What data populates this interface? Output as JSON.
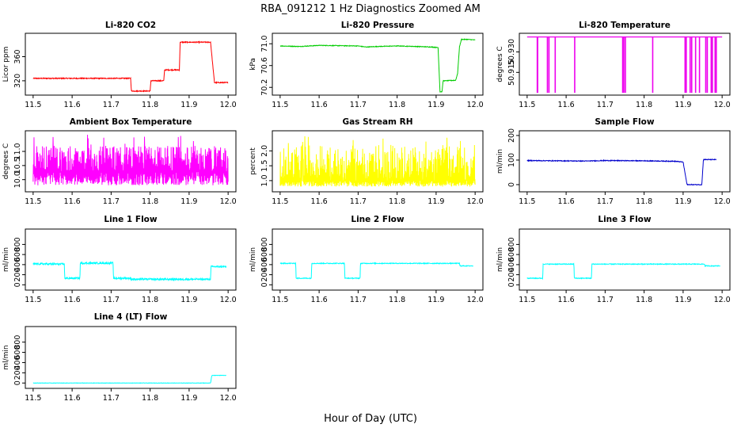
{
  "figure": {
    "title": "RBA_091212  1 Hz Diagnostics Zoomed AM",
    "xlabel": "Hour of Day (UTC)"
  },
  "chart_data": [
    {
      "type": "line",
      "title": "Li-820 CO2",
      "ylabel": "Licor ppm",
      "color": "#ff0000",
      "xlim": [
        11.5,
        12.0
      ],
      "xticks": [
        11.5,
        11.6,
        11.7,
        11.8,
        11.9,
        12.0
      ],
      "ylim": [
        300,
        395
      ],
      "yticks": [
        320,
        360
      ],
      "ytick_labels": [
        "320",
        "360"
      ],
      "noise": 0.8,
      "series": [
        {
          "x": [
            11.5,
            11.75,
            11.752,
            11.8,
            11.802,
            11.835,
            11.837,
            11.875,
            11.877,
            11.955,
            11.96,
            11.965,
            12.0
          ],
          "y": [
            324,
            324,
            303,
            303,
            320,
            320,
            338,
            338,
            384,
            384,
            350,
            317,
            317
          ]
        }
      ]
    },
    {
      "type": "line",
      "title": "Li-820 Pressure",
      "ylabel": "kPa",
      "color": "#00cc00",
      "xlim": [
        11.5,
        12.0
      ],
      "xticks": [
        11.5,
        11.6,
        11.7,
        11.8,
        11.9,
        12.0
      ],
      "ylim": [
        70.1,
        71.15
      ],
      "yticks": [
        70.2,
        70.6,
        71.0
      ],
      "ytick_labels": [
        "70.2",
        "70.6",
        "71.0"
      ],
      "noise": 0.006,
      "series": [
        {
          "x": [
            11.5,
            11.55,
            11.6,
            11.7,
            11.72,
            11.75,
            11.8,
            11.85,
            11.89,
            11.905,
            11.91,
            11.915,
            11.918,
            11.95,
            11.955,
            11.96,
            11.965,
            11.98,
            12.0
          ],
          "y": [
            70.96,
            70.95,
            70.97,
            70.96,
            70.94,
            70.95,
            70.96,
            70.95,
            70.94,
            70.93,
            70.12,
            70.12,
            70.32,
            70.33,
            70.45,
            70.95,
            71.08,
            71.08,
            71.07
          ]
        }
      ]
    },
    {
      "type": "line",
      "title": "Li-820 Temperature",
      "ylabel": "degrees C",
      "color": "#ee00ee",
      "xlim": [
        11.5,
        12.0
      ],
      "xticks": [
        11.5,
        11.6,
        11.7,
        11.8,
        11.9,
        12.0
      ],
      "ylim": [
        50.9,
        50.942
      ],
      "yticks": [
        50.915,
        50.93
      ],
      "ytick_labels": [
        "50.915",
        "50.930"
      ],
      "noise": 0,
      "baseline": 50.941,
      "drop_value": 50.9,
      "drops": [
        11.526,
        11.527,
        11.552,
        11.556,
        11.572,
        11.622,
        11.745,
        11.748,
        11.752,
        11.822,
        11.905,
        11.908,
        11.918,
        11.922,
        11.932,
        11.942,
        11.958,
        11.962,
        11.972,
        11.975,
        11.982,
        11.985
      ]
    },
    {
      "type": "line",
      "title": "Ambient Box Temperature",
      "ylabel": "degrees C",
      "color": "#ff00ff",
      "xlim": [
        11.5,
        12.0
      ],
      "xticks": [
        11.5,
        11.6,
        11.7,
        11.8,
        11.9,
        12.0
      ],
      "ylim": [
        9.65,
        11.65
      ],
      "yticks": [
        10.0,
        10.5,
        11.0
      ],
      "ytick_labels": [
        "10.0",
        "10.5",
        "11.0"
      ],
      "noise": 0,
      "oscillation": {
        "center": 10.3,
        "low": 9.8,
        "high": 11.2,
        "peak": 11.6
      },
      "series": [
        {
          "x": [
            11.5,
            12.0
          ],
          "y": [
            10.3,
            10.3
          ]
        }
      ]
    },
    {
      "type": "line",
      "title": "Gas Stream RH",
      "ylabel": "percent",
      "color": "#ffff00",
      "xlim": [
        11.5,
        12.0
      ],
      "xticks": [
        11.5,
        11.6,
        11.7,
        11.8,
        11.9,
        12.0
      ],
      "ylim": [
        0.7,
        2.6
      ],
      "yticks": [
        1.0,
        1.5,
        2.0
      ],
      "ytick_labels": [
        "1.0",
        "1.5",
        "2.0"
      ],
      "noise": 0,
      "oscillation": {
        "center": 1.0,
        "low": 0.8,
        "high": 2.2,
        "peak": 2.5
      },
      "series": [
        {
          "x": [
            11.5,
            12.0
          ],
          "y": [
            1.0,
            1.0
          ]
        }
      ]
    },
    {
      "type": "line",
      "title": "Sample Flow",
      "ylabel": "ml/min",
      "color": "#0000cc",
      "xlim": [
        11.5,
        12.0
      ],
      "xticks": [
        11.5,
        11.6,
        11.7,
        11.8,
        11.9,
        12.0
      ],
      "ylim": [
        -20,
        210
      ],
      "yticks": [
        0,
        100,
        200
      ],
      "ytick_labels": [
        "0",
        "100",
        "200"
      ],
      "noise": 1.5,
      "series": [
        {
          "x": [
            11.5,
            11.65,
            11.7,
            11.8,
            11.88,
            11.9,
            11.91,
            11.912,
            11.948,
            11.952,
            11.985
          ],
          "y": [
            98,
            96,
            98,
            97,
            95,
            92,
            0,
            0,
            0,
            102,
            102
          ]
        }
      ]
    },
    {
      "type": "line",
      "title": "Line 1 Flow",
      "ylabel": "ml/min",
      "color": "#00ffff",
      "xlim": [
        11.5,
        12.0
      ],
      "xticks": [
        11.5,
        11.6,
        11.7,
        11.8,
        11.9,
        12.0
      ],
      "ylim": [
        -60,
        1060
      ],
      "yticks": [
        0,
        200,
        400,
        600,
        800
      ],
      "ytick_labels": [
        "0",
        "200",
        "400",
        "600",
        "800"
      ],
      "noise": 18,
      "series": [
        {
          "x": [
            11.5,
            11.58,
            11.581,
            11.62,
            11.621,
            11.705,
            11.706,
            11.75,
            11.751,
            11.955,
            11.956,
            11.995
          ],
          "y": [
            415,
            410,
            130,
            130,
            430,
            430,
            130,
            130,
            110,
            110,
            360,
            360
          ]
        }
      ]
    },
    {
      "type": "line",
      "title": "Line 2 Flow",
      "ylabel": "ml/min",
      "color": "#00ffff",
      "xlim": [
        11.5,
        12.0
      ],
      "xticks": [
        11.5,
        11.6,
        11.7,
        11.8,
        11.9,
        12.0
      ],
      "ylim": [
        -60,
        1060
      ],
      "yticks": [
        0,
        200,
        400,
        600,
        800
      ],
      "ytick_labels": [
        "0",
        "200",
        "400",
        "600",
        "800"
      ],
      "noise": 8,
      "series": [
        {
          "x": [
            11.5,
            11.54,
            11.541,
            11.58,
            11.581,
            11.665,
            11.666,
            11.705,
            11.706,
            11.96,
            11.961,
            11.995
          ],
          "y": [
            425,
            425,
            130,
            130,
            425,
            425,
            130,
            130,
            425,
            425,
            375,
            375
          ]
        }
      ]
    },
    {
      "type": "line",
      "title": "Line 3 Flow",
      "ylabel": "ml/min",
      "color": "#00ffff",
      "xlim": [
        11.5,
        12.0
      ],
      "xticks": [
        11.5,
        11.6,
        11.7,
        11.8,
        11.9,
        12.0
      ],
      "ylim": [
        -60,
        1060
      ],
      "yticks": [
        0,
        200,
        400,
        600,
        800
      ],
      "ytick_labels": [
        "0",
        "200",
        "400",
        "600",
        "800"
      ],
      "noise": 8,
      "series": [
        {
          "x": [
            11.5,
            11.54,
            11.541,
            11.62,
            11.621,
            11.665,
            11.666,
            11.955,
            11.956,
            11.995
          ],
          "y": [
            130,
            130,
            410,
            410,
            130,
            130,
            410,
            410,
            375,
            375
          ]
        }
      ]
    },
    {
      "type": "line",
      "title": "Line 4 (LT) Flow",
      "ylabel": "ml/min",
      "color": "#00ffff",
      "xlim": [
        11.5,
        12.0
      ],
      "xticks": [
        11.5,
        11.6,
        11.7,
        11.8,
        11.9,
        12.0
      ],
      "ylim": [
        -60,
        1060
      ],
      "yticks": [
        0,
        200,
        400,
        600,
        800
      ],
      "ytick_labels": [
        "0",
        "200",
        "400",
        "600",
        "800"
      ],
      "noise": 3,
      "series": [
        {
          "x": [
            11.5,
            11.955,
            11.958,
            11.96,
            11.995
          ],
          "y": [
            0,
            0,
            140,
            150,
            150
          ]
        }
      ]
    }
  ]
}
